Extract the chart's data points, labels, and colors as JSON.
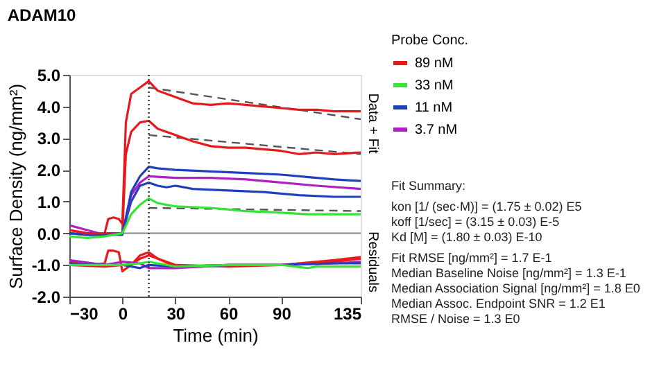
{
  "chart_data": {
    "type": "line",
    "title": "ADAM10",
    "xlabel": "Time (min)",
    "ylabel": "Surface Density (ng/mm²)",
    "legend_title": "Probe Conc.",
    "legend": "right",
    "grid": false,
    "line_style": "solid",
    "marker": "none",
    "xlim": [
      -30,
      135
    ],
    "xticks": [
      -30,
      0,
      30,
      60,
      90,
      135
    ],
    "ylim": [
      -2,
      5
    ],
    "yticks": [
      {
        "value": -2,
        "label": "-2.0"
      },
      {
        "value": -1,
        "label": "-1.0"
      },
      {
        "value": 0,
        "label": "0.0"
      },
      {
        "value": 1,
        "label": "1.0"
      },
      {
        "value": 2,
        "label": "2.0"
      },
      {
        "value": 3,
        "label": "3.0"
      },
      {
        "value": 4,
        "label": "4.0"
      },
      {
        "value": 5,
        "label": "5.0"
      }
    ],
    "ref_lines": [
      {
        "axis": "y",
        "value": 0,
        "color": "#888888",
        "line_style": "solid"
      },
      {
        "axis": "x",
        "value": 15,
        "color": "#333333",
        "line_style": "dotted"
      }
    ],
    "series": [
      {
        "name": "89 nM",
        "color": "#e8191c",
        "x": [
          -30,
          -20,
          -10,
          -8,
          -5,
          -2,
          0,
          2,
          5,
          10,
          15,
          20,
          30,
          40,
          50,
          60,
          70,
          80,
          90,
          100,
          110,
          120,
          135
        ],
        "values": [
          0.1,
          0.0,
          0.0,
          0.45,
          0.5,
          0.45,
          0.3,
          3.5,
          4.4,
          4.6,
          4.8,
          4.5,
          4.3,
          4.1,
          4.05,
          4.1,
          4.05,
          4.0,
          3.95,
          3.9,
          3.9,
          3.85,
          3.85
        ]
      },
      {
        "name": "33 nM",
        "color": "#33e533",
        "x": [
          -30,
          -20,
          -10,
          0,
          5,
          10,
          15,
          20,
          30,
          50,
          70,
          90,
          105,
          110,
          135
        ],
        "values": [
          -0.1,
          -0.15,
          -0.1,
          0.0,
          0.6,
          0.9,
          1.1,
          0.95,
          0.85,
          0.8,
          0.7,
          0.65,
          0.6,
          0.6,
          0.6
        ]
      },
      {
        "name": "11 nM",
        "color": "#1f3fbf",
        "x": [
          -30,
          -20,
          -10,
          0,
          5,
          10,
          15,
          20,
          30,
          50,
          70,
          90,
          110,
          120,
          135
        ],
        "values": [
          0.0,
          -0.05,
          -0.05,
          -0.05,
          1.3,
          1.8,
          2.1,
          2.05,
          2.0,
          1.95,
          1.9,
          1.85,
          1.75,
          1.7,
          1.65
        ]
      },
      {
        "name": "3.7 nM",
        "color": "#b020c0",
        "x": [
          -30,
          -20,
          -10,
          0,
          5,
          10,
          15,
          30,
          50,
          70,
          90,
          110,
          135
        ],
        "values": [
          0.25,
          0.1,
          -0.05,
          0.0,
          1.2,
          1.6,
          1.8,
          1.75,
          1.75,
          1.7,
          1.6,
          1.5,
          1.4
        ]
      },
      {
        "color": "#e8191c",
        "x": [
          -30,
          -20,
          -10,
          0,
          2,
          5,
          10,
          15,
          20,
          30,
          40,
          50,
          60,
          70,
          80,
          90,
          100,
          110,
          120,
          135
        ],
        "values": [
          0.1,
          0.0,
          0.0,
          0.0,
          2.5,
          3.2,
          3.5,
          3.55,
          3.3,
          3.1,
          2.9,
          2.75,
          2.7,
          2.7,
          2.65,
          2.6,
          2.5,
          2.55,
          2.5,
          2.55
        ]
      },
      {
        "color": "#1f3fbf",
        "x": [
          -30,
          -20,
          -10,
          0,
          5,
          10,
          15,
          20,
          25,
          30,
          40,
          60,
          80,
          100,
          120,
          135
        ],
        "values": [
          0.0,
          -0.05,
          -0.05,
          0.0,
          1.0,
          1.5,
          1.6,
          1.5,
          1.45,
          1.5,
          1.4,
          1.35,
          1.3,
          1.2,
          1.15,
          1.15
        ]
      },
      {
        "color": "#555555",
        "line_style": "dashed",
        "x": [
          15,
          135
        ],
        "values": [
          4.6,
          3.6
        ]
      },
      {
        "color": "#555555",
        "line_style": "dashed",
        "x": [
          15,
          135
        ],
        "values": [
          3.1,
          2.5
        ]
      },
      {
        "color": "#555555",
        "line_style": "dashed",
        "x": [
          15,
          135
        ],
        "values": [
          0.8,
          0.7
        ]
      },
      {
        "color": "#33e533",
        "x": [
          -30,
          -10,
          0,
          10,
          15,
          30,
          60,
          90,
          105,
          110,
          135
        ],
        "values": [
          -1.0,
          -1.0,
          -1.0,
          -0.95,
          -0.9,
          -1.05,
          -1.0,
          -1.0,
          -1.1,
          -1.05,
          -1.05
        ]
      },
      {
        "color": "#1f3fbf",
        "x": [
          -30,
          -10,
          0,
          10,
          15,
          30,
          60,
          90,
          120,
          135
        ],
        "values": [
          -0.95,
          -1.0,
          -1.0,
          -1.1,
          -1.0,
          -1.05,
          -1.0,
          -1.0,
          -0.95,
          -0.95
        ]
      },
      {
        "color": "#b020c0",
        "x": [
          -30,
          -10,
          0,
          10,
          15,
          30,
          60,
          90,
          120,
          135
        ],
        "values": [
          -0.85,
          -1.0,
          -0.9,
          -0.95,
          -1.1,
          -1.1,
          -1.0,
          -1.0,
          -0.95,
          -0.9
        ]
      },
      {
        "color": "#e8191c",
        "x": [
          -30,
          -20,
          -10,
          -8,
          -5,
          -2,
          0,
          5,
          10,
          15,
          20,
          30,
          60,
          90,
          120,
          135
        ],
        "values": [
          -0.9,
          -1.0,
          -0.95,
          -0.55,
          -0.55,
          -0.6,
          -1.2,
          -1.0,
          -0.7,
          -0.6,
          -0.8,
          -1.05,
          -1.0,
          -1.0,
          -0.85,
          -0.75
        ]
      },
      {
        "color": "#e8191c",
        "x": [
          -30,
          -10,
          0,
          5,
          10,
          15,
          30,
          60,
          90,
          120,
          135
        ],
        "values": [
          -1.0,
          -1.05,
          -1.0,
          -1.0,
          -0.8,
          -0.7,
          -1.0,
          -1.05,
          -1.0,
          -0.9,
          -0.8
        ]
      }
    ],
    "annotations": [
      "Data + Fit",
      "Residuals",
      "Fit Summary:",
      "kon  [1/ (sec·M)]  =   (1.75 ± 0.02) E5",
      "koff  [1/sec]  =   (3.15 ± 0.03) E-5",
      "Kd  [M]  =   (1.80 ± 0.03) E-10",
      "Fit RMSE [ng/mm²]  =   1.7 E-1",
      "Median Baseline Noise [ng/mm²]  =   1.3 E-1",
      "Median Association Signal [ng/mm²]  =   1.8 E0",
      "Median Assoc. Endpoint SNR  =   1.2 E1",
      "RMSE / Noise  =   1.3 E0"
    ]
  }
}
